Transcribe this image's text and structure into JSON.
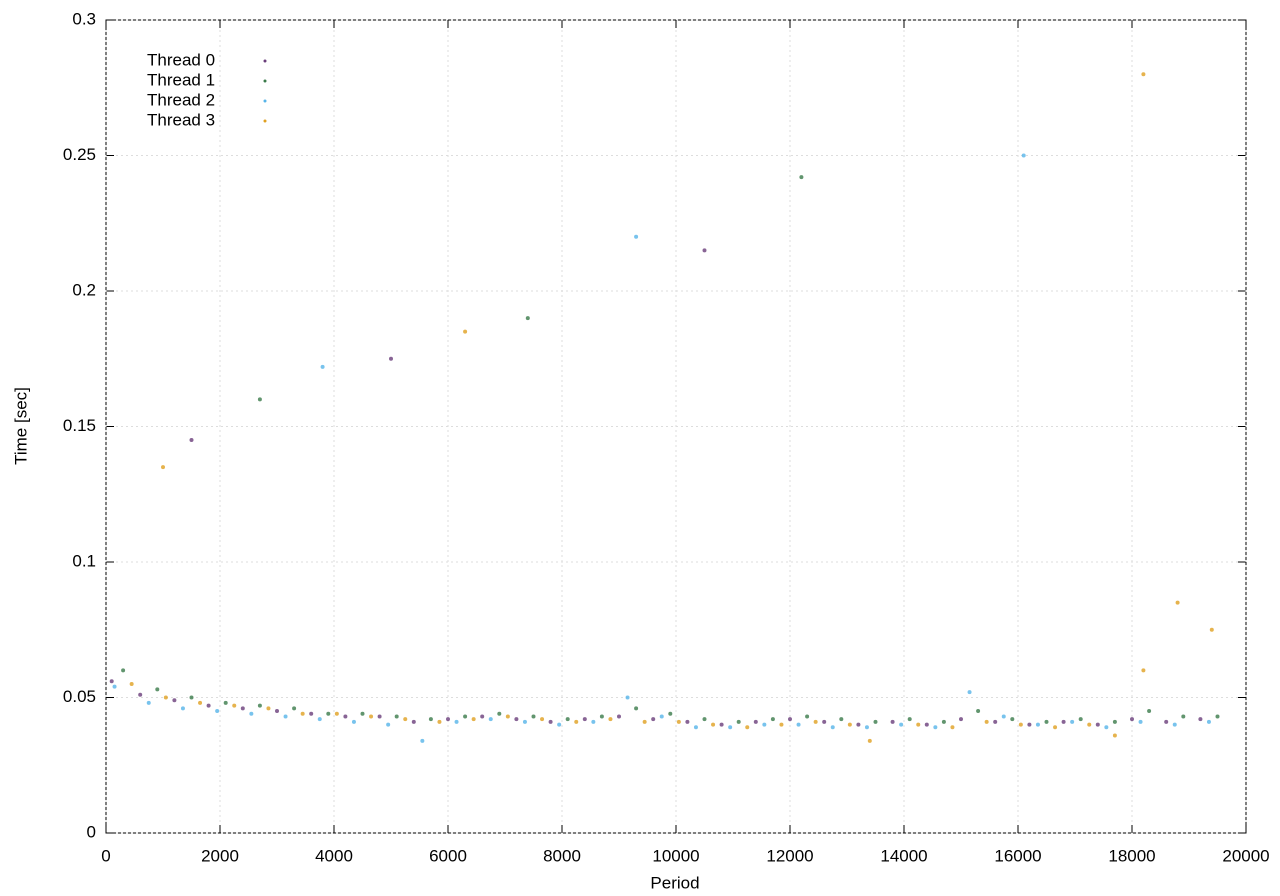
{
  "chart_data": {
    "type": "scatter",
    "xlabel": "Period",
    "ylabel": "Time [sec]",
    "xlim": [
      0,
      20000
    ],
    "xticks": [
      0,
      2000,
      4000,
      6000,
      8000,
      10000,
      12000,
      14000,
      16000,
      18000,
      20000
    ],
    "ylim": [
      0,
      0.3
    ],
    "yticks": [
      0,
      0.05,
      0.1,
      0.15,
      0.2,
      0.25,
      0.3
    ],
    "grid": true,
    "legend": "top-left",
    "series": [
      {
        "name": "Thread 0",
        "color": "#6a3d7a",
        "x": [
          100,
          600,
          1200,
          1800,
          2400,
          3000,
          3600,
          4200,
          4800,
          5400,
          6000,
          6600,
          7200,
          7800,
          8400,
          9000,
          9600,
          10200,
          10800,
          11400,
          12000,
          12600,
          13200,
          13800,
          14400,
          15000,
          15600,
          16200,
          16800,
          17400,
          18000,
          18600,
          19200,
          1500,
          5000,
          10500
        ],
        "values": [
          0.056,
          0.051,
          0.049,
          0.047,
          0.046,
          0.045,
          0.044,
          0.043,
          0.043,
          0.041,
          0.042,
          0.043,
          0.042,
          0.041,
          0.042,
          0.043,
          0.042,
          0.041,
          0.04,
          0.041,
          0.042,
          0.041,
          0.04,
          0.041,
          0.04,
          0.042,
          0.041,
          0.04,
          0.041,
          0.04,
          0.042,
          0.041,
          0.042,
          0.145,
          0.175,
          0.215
        ]
      },
      {
        "name": "Thread 1",
        "color": "#3a7a4a",
        "x": [
          300,
          900,
          1500,
          2100,
          2700,
          3300,
          3900,
          4500,
          5100,
          5700,
          6300,
          6900,
          7500,
          8100,
          8700,
          9300,
          9900,
          10500,
          11100,
          11700,
          12300,
          12900,
          13500,
          14100,
          14700,
          15300,
          15900,
          16500,
          17100,
          17700,
          18300,
          18900,
          19500,
          2700,
          7400,
          12200
        ],
        "values": [
          0.06,
          0.053,
          0.05,
          0.048,
          0.047,
          0.046,
          0.044,
          0.044,
          0.043,
          0.042,
          0.043,
          0.044,
          0.043,
          0.042,
          0.043,
          0.046,
          0.044,
          0.042,
          0.041,
          0.042,
          0.043,
          0.042,
          0.041,
          0.042,
          0.041,
          0.045,
          0.042,
          0.041,
          0.042,
          0.041,
          0.045,
          0.043,
          0.043,
          0.16,
          0.19,
          0.242
        ]
      },
      {
        "name": "Thread 2",
        "color": "#56b4e9",
        "x": [
          150,
          750,
          1350,
          1950,
          2550,
          3150,
          3750,
          4350,
          4950,
          5550,
          6150,
          6750,
          7350,
          7950,
          8550,
          9150,
          9750,
          10350,
          10950,
          11550,
          12150,
          12750,
          13350,
          13950,
          14550,
          15150,
          15750,
          16350,
          16950,
          17550,
          18150,
          18750,
          19350,
          3800,
          9300,
          16100
        ],
        "values": [
          0.054,
          0.048,
          0.046,
          0.045,
          0.044,
          0.043,
          0.042,
          0.041,
          0.04,
          0.034,
          0.041,
          0.042,
          0.041,
          0.04,
          0.041,
          0.05,
          0.043,
          0.039,
          0.039,
          0.04,
          0.04,
          0.039,
          0.039,
          0.04,
          0.039,
          0.052,
          0.043,
          0.04,
          0.041,
          0.039,
          0.041,
          0.04,
          0.041,
          0.172,
          0.22,
          0.25
        ]
      },
      {
        "name": "Thread 3",
        "color": "#e0a020",
        "x": [
          450,
          1050,
          1650,
          2250,
          2850,
          3450,
          4050,
          4650,
          5250,
          5850,
          6450,
          7050,
          7650,
          8250,
          8850,
          9450,
          10050,
          10650,
          11250,
          11850,
          12450,
          13050,
          13400,
          14250,
          14850,
          15450,
          16050,
          16650,
          17250,
          17700,
          18200,
          18800,
          19400,
          1000,
          6300,
          18200
        ],
        "values": [
          0.055,
          0.05,
          0.048,
          0.047,
          0.046,
          0.044,
          0.044,
          0.043,
          0.042,
          0.041,
          0.042,
          0.043,
          0.042,
          0.041,
          0.042,
          0.041,
          0.041,
          0.04,
          0.039,
          0.04,
          0.041,
          0.04,
          0.034,
          0.04,
          0.039,
          0.041,
          0.04,
          0.039,
          0.04,
          0.036,
          0.06,
          0.085,
          0.075,
          0.135,
          0.185,
          0.28
        ]
      }
    ]
  }
}
